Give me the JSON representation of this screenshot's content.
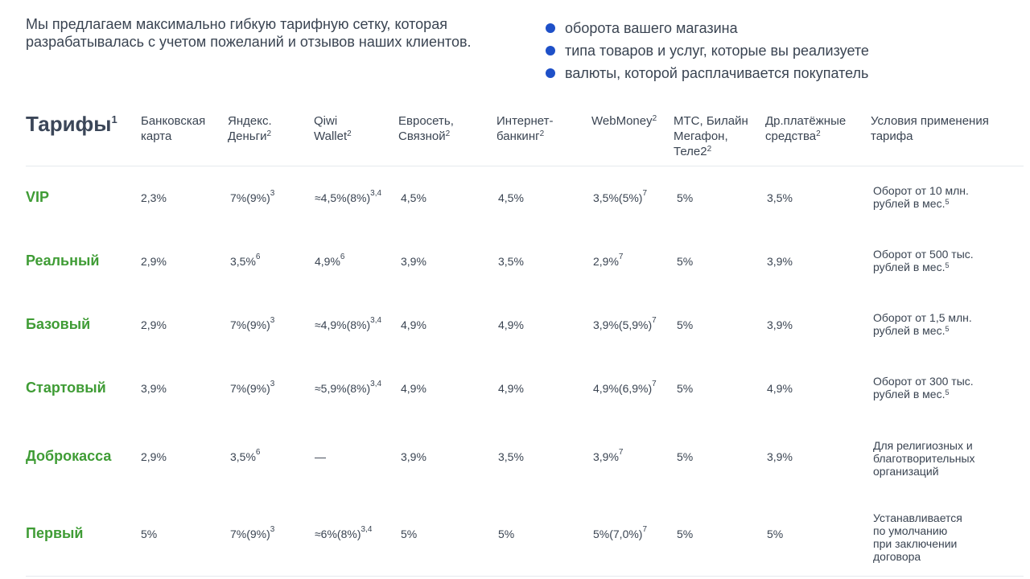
{
  "intro": {
    "text": "Мы предлагаем максимально гибкую тарифную сетку, которая разрабатывалась с учетом пожеланий и отзывов наших клиентов.",
    "bullets": [
      "оборота вашего магазина",
      "типа товаров и услуг, которые вы реализуете",
      "валюты, которой расплачивается покупатель"
    ]
  },
  "table": {
    "title": "Тарифы",
    "title_sup": "1",
    "headers": [
      {
        "l1": "Банковская",
        "l2": "карта",
        "l3": "",
        "sup": ""
      },
      {
        "l1": "Яндекс.",
        "l2": "Деньги",
        "l3": "",
        "sup": "2"
      },
      {
        "l1": "Qiwi",
        "l2": "Wallet",
        "l3": "",
        "sup": "2"
      },
      {
        "l1": "Евросеть,",
        "l2": "Связной",
        "l3": "",
        "sup": "2"
      },
      {
        "l1": "Интернет-",
        "l2": "банкинг",
        "l3": "",
        "sup": "2"
      },
      {
        "l1": "WebMoney",
        "l2": "",
        "l3": "",
        "sup": "2"
      },
      {
        "l1": "МТС, Билайн",
        "l2": "Мегафон,",
        "l3": "Теле2",
        "sup": "2"
      },
      {
        "l1": "Др.платёжные",
        "l2": "средства",
        "l3": "",
        "sup": "2"
      },
      {
        "l1": "Условия применения",
        "l2": "тарифа",
        "l3": "",
        "sup": ""
      }
    ],
    "rows": [
      {
        "name": "VIP",
        "cells": [
          {
            "v": "2,3%",
            "s": ""
          },
          {
            "v": "7%(9%)",
            "s": "3"
          },
          {
            "v": "≈4,5%(8%)",
            "s": "3,4"
          },
          {
            "v": "4,5%",
            "s": ""
          },
          {
            "v": "4,5%",
            "s": ""
          },
          {
            "v": "3,5%(5%)",
            "s": "7"
          },
          {
            "v": "5%",
            "s": ""
          },
          {
            "v": "3,5%",
            "s": ""
          }
        ],
        "cond": {
          "l1": "Оборот от 10 млн.",
          "l2": "рублей в мес.",
          "l3": "",
          "l4": "",
          "sup": "5"
        }
      },
      {
        "name": "Реальный",
        "cells": [
          {
            "v": "2,9%",
            "s": ""
          },
          {
            "v": "3,5%",
            "s": "6"
          },
          {
            "v": "4,9%",
            "s": "6"
          },
          {
            "v": "3,9%",
            "s": ""
          },
          {
            "v": "3,5%",
            "s": ""
          },
          {
            "v": "2,9%",
            "s": "7"
          },
          {
            "v": "5%",
            "s": ""
          },
          {
            "v": "3,9%",
            "s": ""
          }
        ],
        "cond": {
          "l1": "Оборот от 500 тыс.",
          "l2": "рублей в мес.",
          "l3": "",
          "l4": "",
          "sup": "5"
        }
      },
      {
        "name": "Базовый",
        "cells": [
          {
            "v": "2,9%",
            "s": ""
          },
          {
            "v": "7%(9%)",
            "s": "3"
          },
          {
            "v": "≈4,9%(8%)",
            "s": "3,4"
          },
          {
            "v": "4,9%",
            "s": ""
          },
          {
            "v": "4,9%",
            "s": ""
          },
          {
            "v": "3,9%(5,9%)",
            "s": "7"
          },
          {
            "v": "5%",
            "s": ""
          },
          {
            "v": "3,9%",
            "s": ""
          }
        ],
        "cond": {
          "l1": "Оборот от 1,5 млн.",
          "l2": "рублей в мес.",
          "l3": "",
          "l4": "",
          "sup": "5"
        }
      },
      {
        "name": "Стартовый",
        "cells": [
          {
            "v": "3,9%",
            "s": ""
          },
          {
            "v": "7%(9%)",
            "s": "3"
          },
          {
            "v": "≈5,9%(8%)",
            "s": "3,4"
          },
          {
            "v": "4,9%",
            "s": ""
          },
          {
            "v": "4,9%",
            "s": ""
          },
          {
            "v": "4,9%(6,9%)",
            "s": "7"
          },
          {
            "v": "5%",
            "s": ""
          },
          {
            "v": "4,9%",
            "s": ""
          }
        ],
        "cond": {
          "l1": "Оборот от 300 тыс.",
          "l2": "рублей в мес.",
          "l3": "",
          "l4": "",
          "sup": "5"
        }
      },
      {
        "name": "Доброкасса",
        "cells": [
          {
            "v": "2,9%",
            "s": ""
          },
          {
            "v": "3,5%",
            "s": "6"
          },
          {
            "v": "—",
            "s": ""
          },
          {
            "v": "3,9%",
            "s": ""
          },
          {
            "v": "3,5%",
            "s": ""
          },
          {
            "v": "3,9%",
            "s": "7"
          },
          {
            "v": "5%",
            "s": ""
          },
          {
            "v": "3,9%",
            "s": ""
          }
        ],
        "cond": {
          "l1": "Для религиозных и",
          "l2": "благотворительных",
          "l3": "организаций",
          "l4": "",
          "sup": ""
        }
      },
      {
        "name": "Первый",
        "cells": [
          {
            "v": "5%",
            "s": ""
          },
          {
            "v": "7%(9%)",
            "s": "3"
          },
          {
            "v": "≈6%(8%)",
            "s": "3,4"
          },
          {
            "v": "5%",
            "s": ""
          },
          {
            "v": "5%",
            "s": ""
          },
          {
            "v": "5%(7,0%)",
            "s": "7"
          },
          {
            "v": "5%",
            "s": ""
          },
          {
            "v": "5%",
            "s": ""
          }
        ],
        "cond": {
          "l1": "Устанавливается",
          "l2": "по умолчанию",
          "l3": "при заключении",
          "l4": "договора",
          "sup": ""
        }
      }
    ]
  },
  "colors": {
    "tariff_name": "#3f9c35",
    "bullet": "#1e50c8",
    "text": "#3a4452"
  }
}
